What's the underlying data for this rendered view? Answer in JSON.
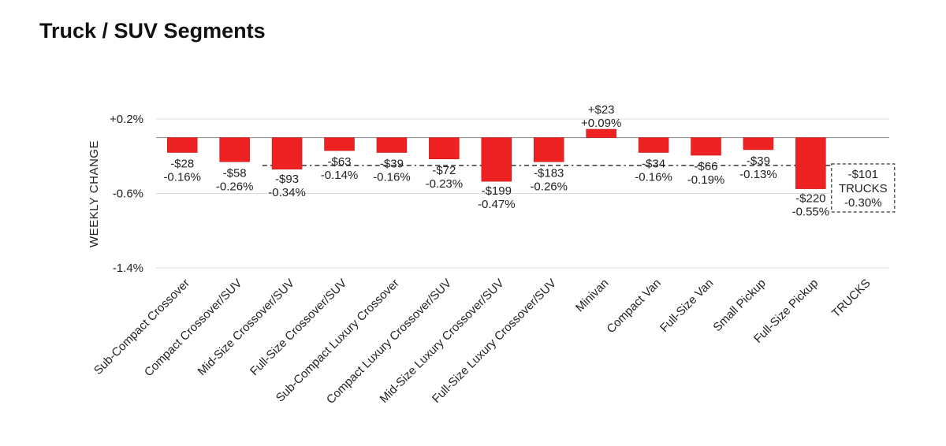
{
  "header": {
    "title": "Truck / SUV Segments"
  },
  "chart_data": {
    "type": "bar",
    "ylabel": "WEEKLY CHANGE",
    "ylim": [
      -1.4,
      0.2
    ],
    "yticks": [
      "+0.2%",
      "-0.6%",
      "-1.4%"
    ],
    "ytick_values": [
      0.2,
      -0.6,
      -1.4
    ],
    "bar_color": "#ee2222",
    "categories": [
      "Sub-Compact Crossover",
      "Compact Crossover/SUV",
      "Mid-Size Crossover/SUV",
      "Full-Size Crossover/SUV",
      "Sub-Compact Luxury Crossover",
      "Compact Luxury Crossover/SUV",
      "Mid-Size Luxury Crossover/SUV",
      "Full-Size Luxury Crossover/SUV",
      "Minivan",
      "Compact Van",
      "Full-Size Van",
      "Small Pickup",
      "Full-Size Pickup",
      "TRUCKS"
    ],
    "values": [
      -0.16,
      -0.26,
      -0.34,
      -0.14,
      -0.16,
      -0.23,
      -0.47,
      -0.26,
      0.09,
      -0.16,
      -0.19,
      -0.13,
      -0.55,
      -0.3
    ],
    "dollar_labels": [
      "-$28",
      "-$58",
      "-$93",
      "-$63",
      "-$39",
      "-$72",
      "-$199",
      "-$183",
      "+$23",
      "-$34",
      "-$66",
      "-$39",
      "-$220",
      "-$101"
    ],
    "percent_labels": [
      "-0.16%",
      "-0.26%",
      "-0.34%",
      "-0.14%",
      "-0.16%",
      "-0.23%",
      "-0.47%",
      "-0.26%",
      "+0.09%",
      "-0.16%",
      "-0.19%",
      "-0.13%",
      "-0.55%",
      "-0.30%"
    ],
    "reference_line": -0.3,
    "summary": {
      "category": "TRUCKS",
      "dollar": "-$101",
      "name": "TRUCKS",
      "percent": "-0.30%"
    }
  }
}
